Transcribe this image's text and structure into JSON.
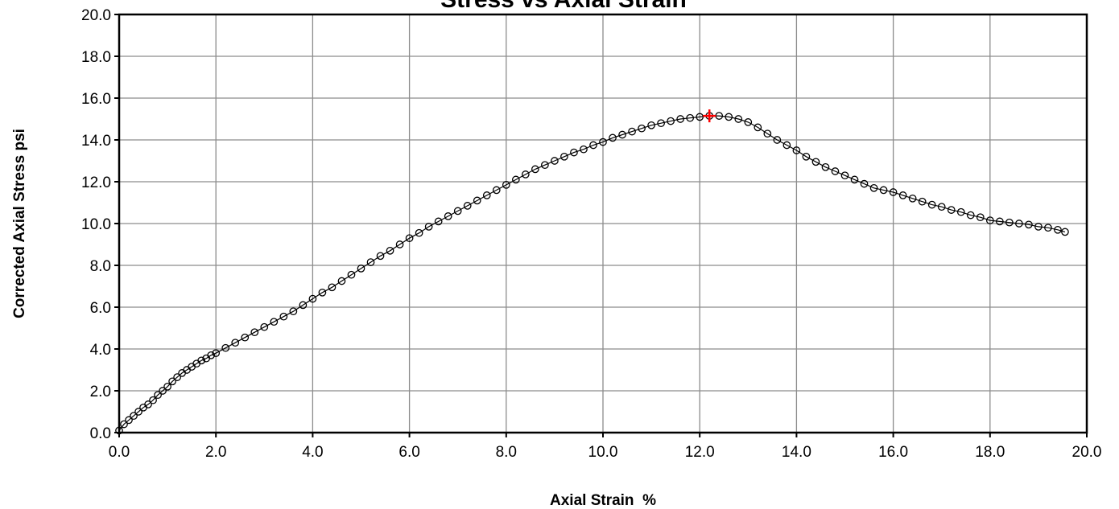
{
  "chart_data": {
    "type": "scatter",
    "title": "Stress vs Axial Strain",
    "xlabel": "Axial Strain  %",
    "ylabel": "Corrected Axial Stress psi",
    "xlim": [
      0,
      20
    ],
    "ylim": [
      0,
      20
    ],
    "x_ticks": [
      "0.0",
      "2.0",
      "4.0",
      "6.0",
      "8.0",
      "10.0",
      "12.0",
      "14.0",
      "16.0",
      "18.0",
      "20.0"
    ],
    "y_ticks": [
      "0.0",
      "2.0",
      "4.0",
      "6.0",
      "8.0",
      "10.0",
      "12.0",
      "14.0",
      "16.0",
      "18.0",
      "20.0"
    ],
    "grid": true,
    "legend": "none",
    "series": [
      {
        "marker": "open-circle",
        "color": "#000000",
        "x": [
          0.0,
          0.1,
          0.2,
          0.3,
          0.4,
          0.5,
          0.6,
          0.7,
          0.8,
          0.9,
          1.0,
          1.1,
          1.2,
          1.3,
          1.4,
          1.5,
          1.6,
          1.7,
          1.8,
          1.9,
          2.0,
          2.2,
          2.4,
          2.6,
          2.8,
          3.0,
          3.2,
          3.4,
          3.6,
          3.8,
          4.0,
          4.2,
          4.4,
          4.6,
          4.8,
          5.0,
          5.2,
          5.4,
          5.6,
          5.8,
          6.0,
          6.2,
          6.4,
          6.6,
          6.8,
          7.0,
          7.2,
          7.4,
          7.6,
          7.8,
          8.0,
          8.2,
          8.4,
          8.6,
          8.8,
          9.0,
          9.2,
          9.4,
          9.6,
          9.8,
          10.0,
          10.2,
          10.4,
          10.6,
          10.8,
          11.0,
          11.2,
          11.4,
          11.6,
          11.8,
          12.0,
          12.2,
          12.4,
          12.6,
          12.8,
          13.0,
          13.2,
          13.4,
          13.6,
          13.8,
          14.0,
          14.2,
          14.4,
          14.6,
          14.8,
          15.0,
          15.2,
          15.4,
          15.6,
          15.8,
          16.0,
          16.2,
          16.4,
          16.6,
          16.8,
          17.0,
          17.2,
          17.4,
          17.6,
          17.8,
          18.0,
          18.2,
          18.4,
          18.6,
          18.8,
          19.0,
          19.2,
          19.4,
          19.55
        ],
        "y": [
          0.1,
          0.4,
          0.6,
          0.8,
          1.0,
          1.2,
          1.35,
          1.55,
          1.8,
          2.0,
          2.2,
          2.45,
          2.65,
          2.85,
          3.0,
          3.15,
          3.3,
          3.45,
          3.55,
          3.7,
          3.8,
          4.05,
          4.3,
          4.55,
          4.8,
          5.05,
          5.3,
          5.55,
          5.8,
          6.1,
          6.4,
          6.7,
          6.95,
          7.25,
          7.55,
          7.85,
          8.15,
          8.45,
          8.7,
          9.0,
          9.3,
          9.55,
          9.85,
          10.1,
          10.35,
          10.6,
          10.85,
          11.1,
          11.35,
          11.6,
          11.85,
          12.1,
          12.35,
          12.6,
          12.8,
          13.0,
          13.2,
          13.4,
          13.55,
          13.75,
          13.9,
          14.1,
          14.25,
          14.4,
          14.55,
          14.7,
          14.8,
          14.9,
          15.0,
          15.05,
          15.1,
          15.15,
          15.15,
          15.1,
          15.0,
          14.85,
          14.6,
          14.3,
          14.0,
          13.75,
          13.5,
          13.2,
          12.95,
          12.7,
          12.5,
          12.3,
          12.1,
          11.9,
          11.7,
          11.6,
          11.5,
          11.35,
          11.2,
          11.05,
          10.9,
          10.8,
          10.65,
          10.55,
          10.4,
          10.3,
          10.15,
          10.1,
          10.05,
          10.0,
          9.95,
          9.85,
          9.8,
          9.7,
          9.6
        ]
      }
    ],
    "peak_marker": {
      "x": 12.2,
      "y": 15.15,
      "marker": "plus",
      "color": "#ff0000"
    }
  }
}
